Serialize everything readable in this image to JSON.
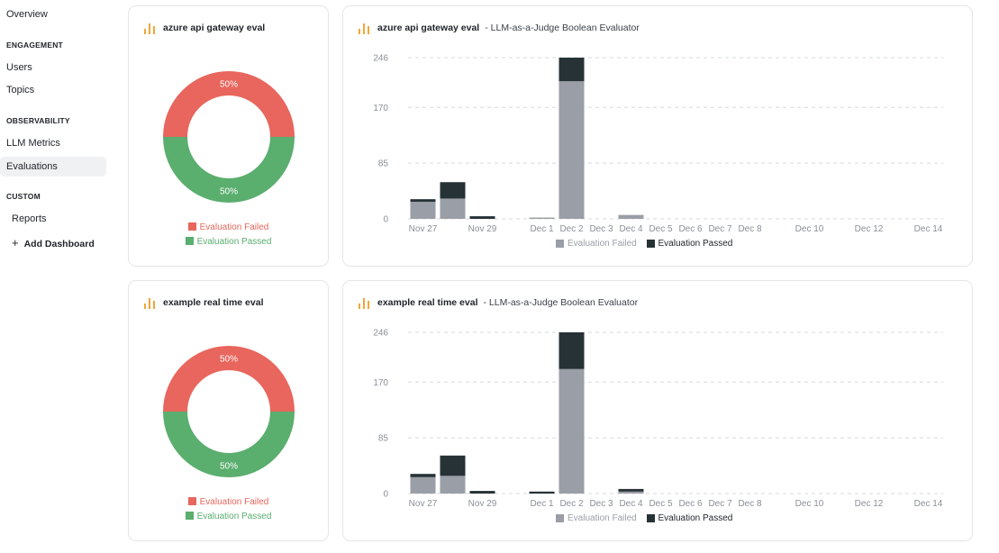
{
  "sidebar": {
    "overview": "Overview",
    "engagement_header": "ENGAGEMENT",
    "users": "Users",
    "topics": "Topics",
    "observability_header": "OBSERVABILITY",
    "llm_metrics": "LLM Metrics",
    "evaluations": "Evaluations",
    "custom_header": "CUSTOM",
    "reports": "Reports",
    "add_dashboard": "Add Dashboard"
  },
  "colors": {
    "failed_donut": "#e8665d",
    "passed_donut": "#5aae6e",
    "failed_bar": "#9a9ea6",
    "passed_bar": "#263236",
    "accent_icon": "#f0a63a"
  },
  "donuts": [
    {
      "title": "azure api gateway eval",
      "failed_pct_label": "50%",
      "passed_pct_label": "50%",
      "failed_fraction": 0.5,
      "legend_failed": "Evaluation Failed",
      "legend_passed": "Evaluation Passed"
    },
    {
      "title": "example real time eval",
      "failed_pct_label": "50%",
      "passed_pct_label": "50%",
      "failed_fraction": 0.5,
      "legend_failed": "Evaluation Failed",
      "legend_passed": "Evaluation Passed"
    }
  ],
  "bar_cards": [
    {
      "title": "azure api gateway eval",
      "subtitle": "- LLM-as-a-Judge Boolean Evaluator",
      "legend_failed": "Evaluation Failed",
      "legend_passed": "Evaluation Passed"
    },
    {
      "title": "example real time eval",
      "subtitle": "- LLM-as-a-Judge Boolean Evaluator",
      "legend_failed": "Evaluation Failed",
      "legend_passed": "Evaluation Passed"
    }
  ],
  "chart_data": [
    {
      "type": "bar",
      "stacked": true,
      "title": "azure api gateway eval - LLM-as-a-Judge Boolean Evaluator",
      "categories": [
        "Nov 27",
        "Nov 28",
        "Nov 29",
        "Nov 30",
        "Dec 1",
        "Dec 2",
        "Dec 3",
        "Dec 4",
        "Dec 5",
        "Dec 6",
        "Dec 7",
        "Dec 8",
        "Dec 9",
        "Dec 10",
        "Dec 11",
        "Dec 12",
        "Dec 13",
        "Dec 14"
      ],
      "tick_labels": [
        "Nov 27",
        "",
        "Nov 29",
        "",
        "Dec 1",
        "Dec 2",
        "Dec 3",
        "Dec 4",
        "Dec 5",
        "Dec 6",
        "Dec 7",
        "Dec 8",
        "",
        "Dec 10",
        "",
        "Dec 12",
        "",
        "Dec 14"
      ],
      "yticks": [
        0,
        85,
        170,
        246
      ],
      "ylim": [
        0,
        246
      ],
      "legend_position": "bottom",
      "series": [
        {
          "name": "Evaluation Failed",
          "values": [
            26,
            31,
            0,
            0,
            2,
            210,
            0,
            6,
            0,
            0,
            0,
            0,
            0,
            0,
            0,
            0,
            0,
            0
          ]
        },
        {
          "name": "Evaluation Passed",
          "values": [
            4,
            25,
            4,
            0,
            0,
            36,
            0,
            0,
            0,
            0,
            0,
            0,
            0,
            0,
            0,
            0,
            0,
            0
          ]
        }
      ]
    },
    {
      "type": "bar",
      "stacked": true,
      "title": "example real time eval - LLM-as-a-Judge Boolean Evaluator",
      "categories": [
        "Nov 27",
        "Nov 28",
        "Nov 29",
        "Nov 30",
        "Dec 1",
        "Dec 2",
        "Dec 3",
        "Dec 4",
        "Dec 5",
        "Dec 6",
        "Dec 7",
        "Dec 8",
        "Dec 9",
        "Dec 10",
        "Dec 11",
        "Dec 12",
        "Dec 13",
        "Dec 14"
      ],
      "tick_labels": [
        "Nov 27",
        "",
        "Nov 29",
        "",
        "Dec 1",
        "Dec 2",
        "Dec 3",
        "Dec 4",
        "Dec 5",
        "Dec 6",
        "Dec 7",
        "Dec 8",
        "",
        "Dec 10",
        "",
        "Dec 12",
        "",
        "Dec 14"
      ],
      "yticks": [
        0,
        85,
        170,
        246
      ],
      "ylim": [
        0,
        246
      ],
      "legend_position": "bottom",
      "series": [
        {
          "name": "Evaluation Failed",
          "values": [
            25,
            27,
            0,
            0,
            0,
            190,
            0,
            3,
            0,
            0,
            0,
            0,
            0,
            0,
            0,
            0,
            0,
            0
          ]
        },
        {
          "name": "Evaluation Passed",
          "values": [
            5,
            31,
            4,
            0,
            3,
            56,
            0,
            4,
            0,
            0,
            0,
            0,
            0,
            0,
            0,
            0,
            0,
            0
          ]
        }
      ]
    }
  ]
}
